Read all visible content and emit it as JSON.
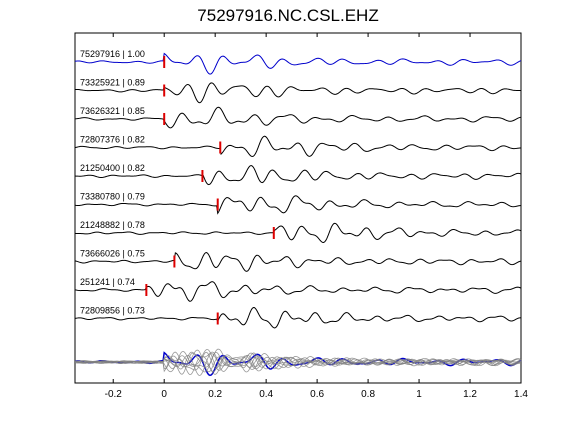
{
  "chart_data": {
    "type": "line",
    "title": "75297916.NC.CSL.EHZ",
    "xlabel": "",
    "ylabel": "",
    "xlim": [
      -0.35,
      1.4
    ],
    "xticks": [
      -0.2,
      0,
      0.2,
      0.4,
      0.6,
      0.8,
      1.0,
      1.2,
      1.4
    ],
    "xtick_labels": [
      "-0.2",
      "0",
      "0.2",
      "0.4",
      "0.6",
      "0.8",
      "1",
      "1.2",
      "1.4"
    ],
    "grid": false,
    "colors": {
      "reference": "#0000cc",
      "trace": "#000000",
      "pick": "#dd0000",
      "stack": "#808080"
    },
    "series": [
      {
        "name": "75297916 | 1.00",
        "pick": 0.0,
        "seed": 1,
        "color": "#0000cc"
      },
      {
        "name": "73325921 | 0.89",
        "pick": 0.0,
        "seed": 2,
        "color": "#000000"
      },
      {
        "name": "73626321 | 0.85",
        "pick": 0.0,
        "seed": 3,
        "color": "#000000"
      },
      {
        "name": "72807376 | 0.82",
        "pick": 0.22,
        "seed": 4,
        "color": "#000000"
      },
      {
        "name": "21250400 | 0.82",
        "pick": 0.15,
        "seed": 5,
        "color": "#000000"
      },
      {
        "name": "73380780 | 0.79",
        "pick": 0.21,
        "seed": 6,
        "color": "#000000"
      },
      {
        "name": "21248882 | 0.78",
        "pick": 0.43,
        "seed": 7,
        "color": "#000000"
      },
      {
        "name": "73666026 | 0.75",
        "pick": 0.04,
        "seed": 8,
        "color": "#000000"
      },
      {
        "name": "251241 | 0.74",
        "pick": -0.07,
        "seed": 9,
        "color": "#000000"
      },
      {
        "name": "72809856 | 0.73",
        "pick": 0.21,
        "seed": 10,
        "color": "#000000"
      }
    ]
  }
}
